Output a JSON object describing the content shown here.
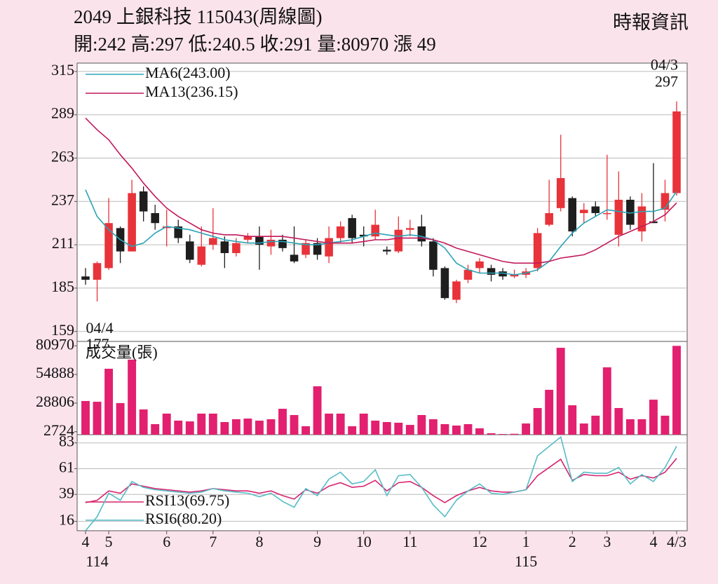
{
  "header": {
    "title": "2049  上銀科技 115043(周線圖)",
    "quote": "開:242 高:297 低:240.5 收:291 量:80970 漲 49",
    "source": "時報資訊"
  },
  "chart_data": [
    {
      "type": "candlestick",
      "open": [
        192,
        190,
        197,
        221,
        207,
        243,
        230,
        221,
        222,
        213,
        199,
        211,
        213,
        206,
        214,
        216,
        210,
        214,
        205,
        205,
        212,
        204,
        215,
        227,
        217,
        216,
        208,
        207,
        220,
        222,
        213,
        197,
        178,
        190,
        197,
        197,
        195,
        192,
        193,
        197,
        223,
        233,
        239,
        230,
        234,
        230,
        217,
        238,
        219,
        225,
        232,
        242
      ],
      "high": [
        197,
        201,
        239,
        222,
        250,
        246,
        235,
        232,
        226,
        217,
        222,
        233,
        216,
        215,
        218,
        222,
        220,
        217,
        222,
        214,
        215,
        222,
        225,
        229,
        222,
        232,
        210,
        228,
        226,
        229,
        215,
        198,
        190,
        199,
        203,
        199,
        197,
        196,
        197,
        221,
        250,
        277,
        240,
        236,
        237,
        265,
        255,
        240,
        242,
        260,
        250,
        297
      ],
      "low": [
        187,
        177,
        196,
        200,
        207,
        225,
        220,
        210,
        212,
        200,
        198,
        208,
        197,
        204,
        212,
        196,
        205,
        207,
        200,
        203,
        202,
        200,
        212,
        212,
        210,
        214,
        205,
        206,
        216,
        210,
        192,
        178,
        176,
        188,
        194,
        189,
        190,
        191,
        191,
        195,
        222,
        231,
        216,
        224,
        228,
        226,
        210,
        220,
        213,
        224,
        225,
        240.5
      ],
      "close": [
        190,
        200,
        224,
        207,
        242,
        231,
        224,
        222,
        215,
        202,
        210,
        215,
        206,
        212,
        216,
        211,
        214,
        209,
        201,
        212,
        205,
        215,
        222,
        215,
        216,
        223,
        207,
        220,
        221,
        213,
        196,
        179,
        189,
        196,
        201,
        193,
        192,
        193,
        195,
        218,
        230,
        251,
        219,
        232,
        230,
        230,
        238,
        223,
        234,
        224,
        242,
        291
      ],
      "up_color": "#e8333a",
      "down_color": "#1e1e1e",
      "series": [
        {
          "name": "MA6(243.00)",
          "color": "#2aa3b5",
          "values": [
            244,
            228,
            220,
            214,
            210,
            212,
            218,
            222,
            221,
            220,
            218,
            216,
            214,
            213,
            212,
            212,
            213,
            213,
            212,
            211,
            211,
            212,
            213,
            214,
            216,
            218,
            217,
            216,
            217,
            216,
            214,
            209,
            200,
            196,
            194,
            194,
            194,
            193,
            194,
            196,
            201,
            210,
            218,
            224,
            228,
            232,
            231,
            230,
            231,
            231,
            233,
            243
          ]
        },
        {
          "name": "MA13(236.15)",
          "color": "#c2185b",
          "values": [
            287,
            280,
            274,
            265,
            257,
            248,
            240,
            233,
            228,
            224,
            220,
            218,
            217,
            217,
            216,
            216,
            216,
            216,
            215,
            214,
            213,
            212,
            212,
            212,
            213,
            214,
            214,
            215,
            215,
            215,
            214,
            212,
            209,
            207,
            205,
            203,
            201,
            200,
            200,
            200,
            201,
            203,
            204,
            205,
            208,
            212,
            216,
            219,
            222,
            225,
            229,
            236.15
          ]
        }
      ],
      "annotations": [
        {
          "label": "04/4",
          "value": 177,
          "index": 1
        },
        {
          "label": "04/3",
          "value": 297,
          "index": 51
        }
      ],
      "ylim": [
        153,
        320
      ],
      "yticks": [
        159,
        185,
        211,
        237,
        263,
        289,
        315
      ],
      "grid": true
    },
    {
      "type": "bar",
      "title": "成交量(張)",
      "color": "#e2206f",
      "values": [
        30700,
        30000,
        60100,
        28800,
        68400,
        23000,
        9600,
        19200,
        12800,
        12100,
        19200,
        19200,
        11500,
        14100,
        14700,
        12800,
        14100,
        23600,
        17900,
        7700,
        44100,
        19200,
        19200,
        7700,
        19200,
        12800,
        11500,
        10900,
        8900,
        17900,
        14100,
        9600,
        8300,
        9600,
        5800,
        1300,
        600,
        800,
        10200,
        24300,
        40900,
        79200,
        26800,
        10200,
        17300,
        61400,
        24300,
        14100,
        14100,
        31900,
        17300,
        80970
      ],
      "ylim": [
        0,
        85000
      ],
      "yticks": [
        2724,
        28806,
        54888,
        80970
      ],
      "grid": false
    },
    {
      "type": "line",
      "categories": [
        "4",
        null,
        "5",
        null,
        null,
        null,
        null,
        "6",
        null,
        null,
        null,
        "7",
        null,
        null,
        null,
        "8",
        null,
        null,
        null,
        null,
        "9",
        null,
        null,
        null,
        "10",
        null,
        null,
        null,
        "11",
        null,
        null,
        null,
        null,
        null,
        "12",
        null,
        null,
        null,
        "1",
        null,
        null,
        null,
        "2",
        null,
        null,
        "3",
        null,
        null,
        null,
        "4",
        null,
        "4/3"
      ],
      "year_labels": [
        {
          "label": "114",
          "index": 1
        },
        {
          "label": "115",
          "index": 38
        }
      ],
      "series": [
        {
          "name": "RSI13(69.75)",
          "color": "#d6246e",
          "values": [
            32,
            34,
            42,
            40,
            48,
            46,
            44,
            43,
            42,
            41,
            42,
            44,
            43,
            42,
            42,
            40,
            42,
            38,
            35,
            43,
            40,
            46,
            49,
            45,
            46,
            51,
            42,
            49,
            50,
            45,
            38,
            32,
            38,
            42,
            45,
            42,
            41,
            41,
            43,
            55,
            62,
            69,
            51,
            56,
            55,
            55,
            58,
            52,
            55,
            53,
            58,
            69.75
          ]
        },
        {
          "name": "RSI6(80.20)",
          "color": "#56bcc6",
          "values": [
            8,
            20,
            40,
            34,
            50,
            45,
            43,
            42,
            41,
            40,
            41,
            44,
            42,
            41,
            40,
            37,
            40,
            33,
            28,
            44,
            38,
            52,
            58,
            48,
            50,
            60,
            38,
            55,
            56,
            45,
            30,
            20,
            34,
            42,
            48,
            40,
            39,
            41,
            43,
            72,
            80,
            88,
            50,
            58,
            57,
            57,
            62,
            48,
            56,
            50,
            62,
            80.2
          ]
        }
      ],
      "ylim": [
        8,
        90
      ],
      "yticks": [
        16,
        39,
        61,
        83
      ],
      "grid": true
    }
  ]
}
